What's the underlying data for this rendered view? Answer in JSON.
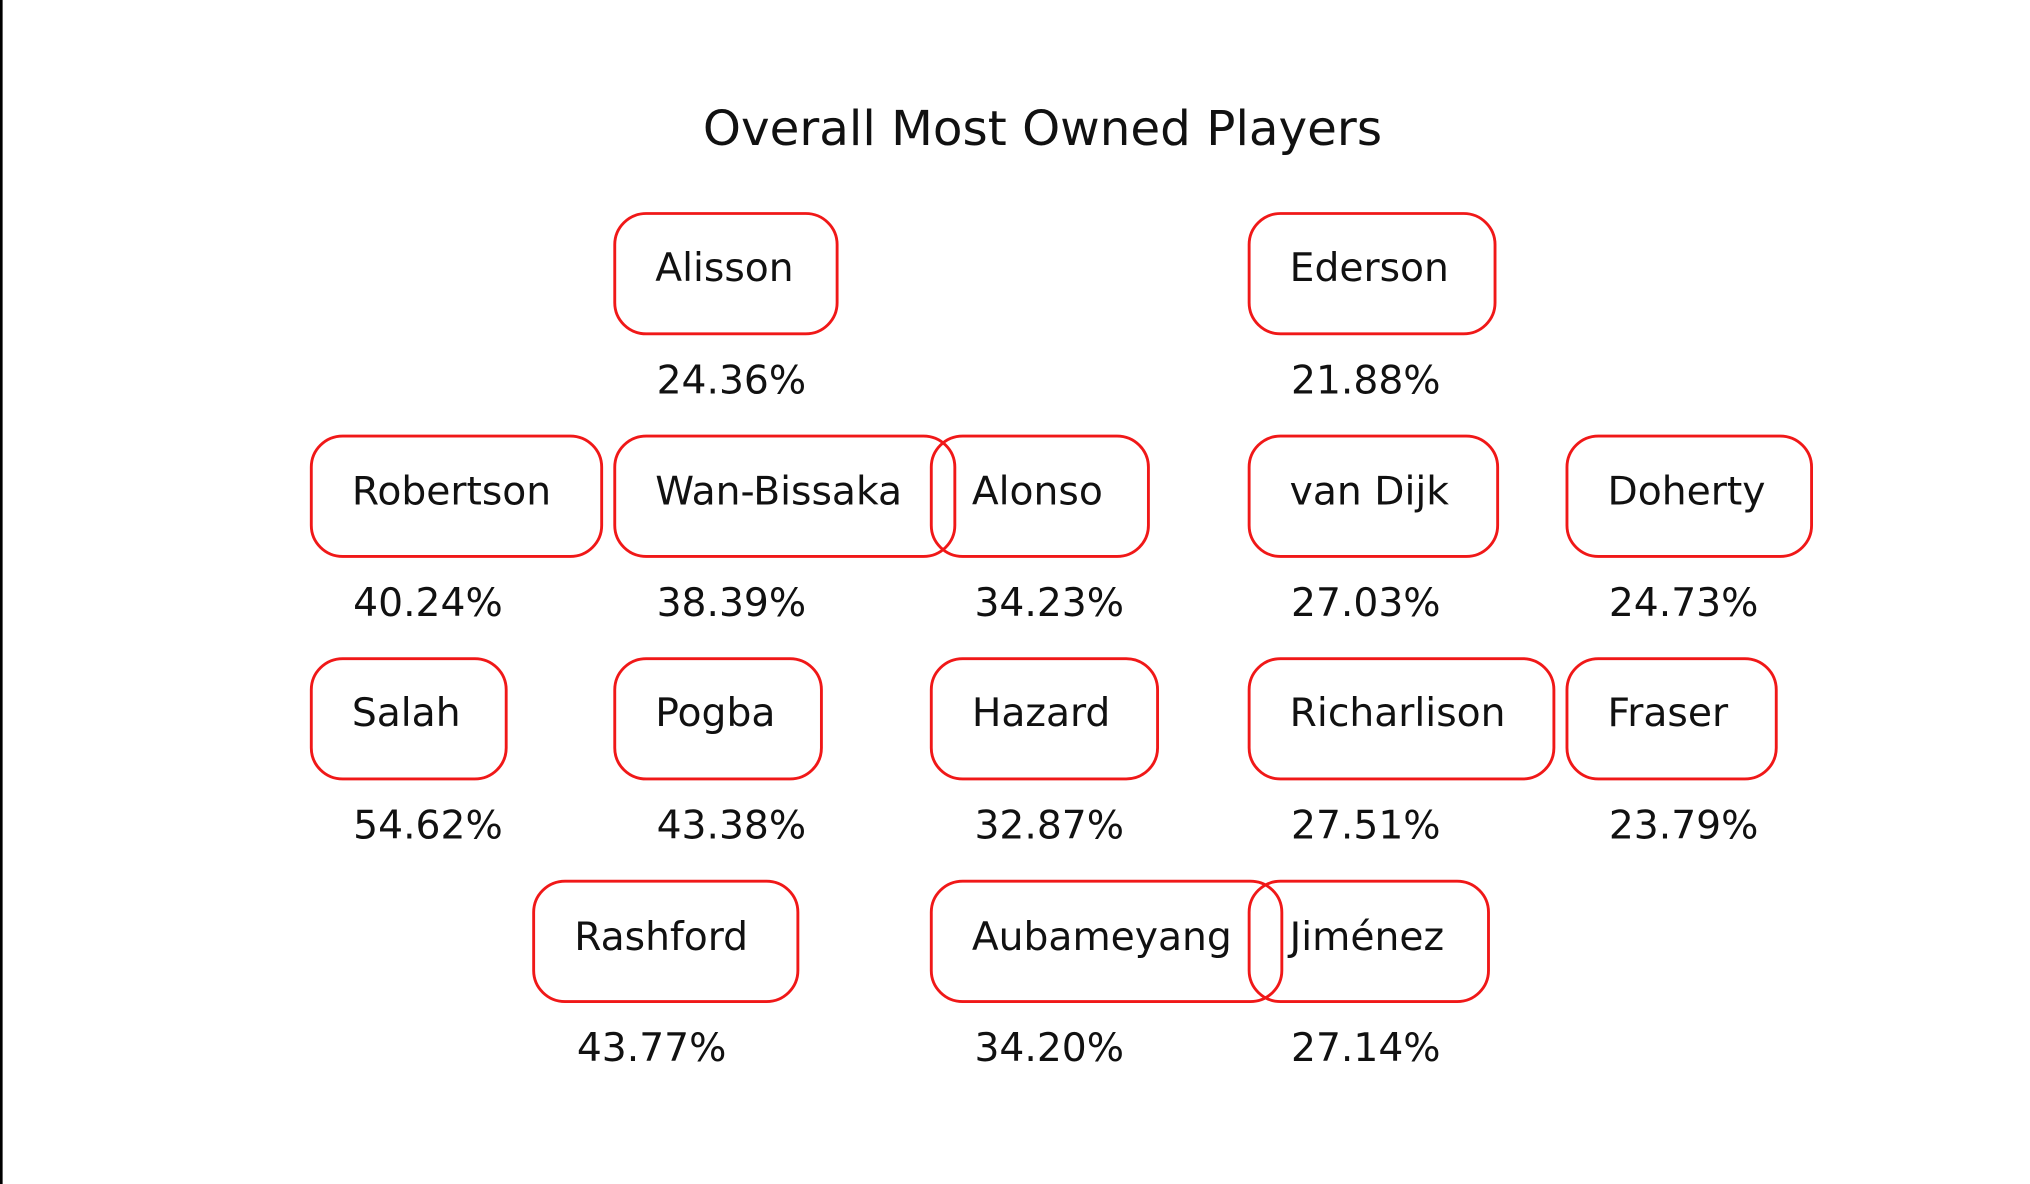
{
  "title": "Overall Most Owned Players",
  "players": [
    {
      "name": "Alisson",
      "ownership": "24.36%"
    },
    {
      "name": "Ederson",
      "ownership": "21.88%"
    },
    {
      "name": "Robertson",
      "ownership": "40.24%"
    },
    {
      "name": "Wan-Bissaka",
      "ownership": "38.39%"
    },
    {
      "name": "Alonso",
      "ownership": "34.23%"
    },
    {
      "name": "van Dijk",
      "ownership": "27.03%"
    },
    {
      "name": "Doherty",
      "ownership": "24.73%"
    },
    {
      "name": "Salah",
      "ownership": "54.62%"
    },
    {
      "name": "Pogba",
      "ownership": "43.38%"
    },
    {
      "name": "Hazard",
      "ownership": "32.87%"
    },
    {
      "name": "Richarlison",
      "ownership": "27.51%"
    },
    {
      "name": "Fraser",
      "ownership": "23.79%"
    },
    {
      "name": "Rashford",
      "ownership": "43.77%"
    },
    {
      "name": "Aubameyang",
      "ownership": "34.20%"
    },
    {
      "name": "Jiménez",
      "ownership": "27.14%"
    }
  ]
}
